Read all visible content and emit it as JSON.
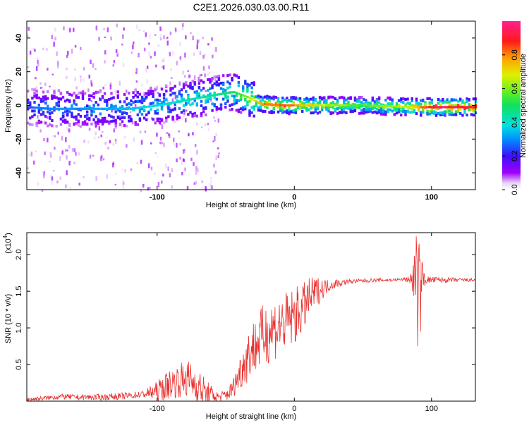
{
  "chart_data": [
    {
      "type": "heatmap",
      "title": "C2E1.2026.030.03.00.R11",
      "xlabel": "Height of straight line (km)",
      "ylabel": "Frequency (Hz)",
      "xlim": [
        -195,
        132
      ],
      "ylim": [
        -50,
        50
      ],
      "x_ticks": [
        -100,
        0,
        100
      ],
      "y_ticks": [
        -40,
        -20,
        0,
        20,
        40
      ],
      "x_tick_labels": [
        "-100",
        "0",
        "100"
      ],
      "y_tick_labels": [
        "-40",
        "-20",
        "0",
        "20",
        "40"
      ],
      "colorbar": {
        "label": "Normalized spectral amplitude",
        "range": [
          0,
          1
        ],
        "ticks": [
          0.0,
          0.2,
          0.4,
          0.6,
          0.8
        ],
        "tick_labels": [
          "0.0",
          "0.2",
          "0.4",
          "0.6",
          "0.8"
        ]
      },
      "ridge": [
        {
          "x": -195,
          "f": -1,
          "amp": 0.25
        },
        {
          "x": -180,
          "f": -2,
          "amp": 0.3
        },
        {
          "x": -160,
          "f": -2,
          "amp": 0.3
        },
        {
          "x": -140,
          "f": -2,
          "amp": 0.33
        },
        {
          "x": -120,
          "f": -2,
          "amp": 0.35
        },
        {
          "x": -100,
          "f": 0,
          "amp": 0.38
        },
        {
          "x": -80,
          "f": 3,
          "amp": 0.42
        },
        {
          "x": -60,
          "f": 6,
          "amp": 0.45
        },
        {
          "x": -45,
          "f": 8,
          "amp": 0.5
        },
        {
          "x": -35,
          "f": 5,
          "amp": 0.6
        },
        {
          "x": -25,
          "f": 1,
          "amp": 0.78
        },
        {
          "x": -10,
          "f": 0,
          "amp": 0.82
        },
        {
          "x": 0,
          "f": 0,
          "amp": 0.78
        },
        {
          "x": 20,
          "f": 0,
          "amp": 0.65
        },
        {
          "x": 50,
          "f": 0,
          "amp": 0.55
        },
        {
          "x": 85,
          "f": -1,
          "amp": 0.7
        },
        {
          "x": 100,
          "f": -1,
          "amp": 0.95
        },
        {
          "x": 132,
          "f": -1,
          "amp": 0.9
        }
      ]
    },
    {
      "type": "line",
      "xlabel": "Height of straight line (km)",
      "ylabel": "SNR (10 * v/v)",
      "y_multiplier": "(x10",
      "y_multiplier_exp": "4",
      "y_multiplier_close": ")",
      "xlim": [
        -195,
        132
      ],
      "ylim": [
        0.0,
        2.3
      ],
      "x_ticks": [
        -100,
        0,
        100
      ],
      "y_ticks": [
        0.5,
        1.0,
        1.5,
        2.0
      ],
      "x_tick_labels": [
        "-100",
        "0",
        "100"
      ],
      "y_tick_labels": [
        "0.5",
        "1.0",
        "1.5",
        "2.0"
      ],
      "color": "#e8312f",
      "envelope": {
        "x": [
          -195,
          -180,
          -170,
          -160,
          -140,
          -120,
          -110,
          -100,
          -95,
          -90,
          -85,
          -80,
          -75,
          -70,
          -65,
          -60,
          -55,
          -50,
          -45,
          -40,
          -35,
          -30,
          -25,
          -20,
          -15,
          -10,
          -5,
          0,
          5,
          10,
          15,
          20,
          25,
          30,
          40,
          50,
          60,
          70,
          80,
          85,
          88,
          90,
          92,
          95,
          100,
          110,
          120,
          132
        ],
        "y": [
          0.02,
          0.04,
          0.06,
          0.05,
          0.05,
          0.07,
          0.09,
          0.12,
          0.17,
          0.22,
          0.25,
          0.28,
          0.25,
          0.18,
          0.1,
          0.06,
          0.05,
          0.07,
          0.15,
          0.35,
          0.55,
          0.7,
          0.8,
          0.9,
          0.95,
          1.0,
          1.05,
          1.12,
          1.2,
          1.35,
          1.45,
          1.52,
          1.57,
          1.6,
          1.63,
          1.64,
          1.65,
          1.65,
          1.66,
          1.66,
          1.66,
          1.66,
          1.66,
          1.65,
          1.65,
          1.65,
          1.65,
          1.65
        ]
      },
      "noise_amp": {
        "x": [
          -195,
          -110,
          -95,
          -75,
          -65,
          -55,
          -45,
          -35,
          -20,
          0,
          10,
          25,
          40,
          80,
          85,
          88,
          92,
          96,
          132
        ],
        "y": [
          0.03,
          0.05,
          0.18,
          0.28,
          0.2,
          0.06,
          0.12,
          0.35,
          0.45,
          0.4,
          0.3,
          0.08,
          0.03,
          0.02,
          0.08,
          0.45,
          0.35,
          0.05,
          0.02
        ]
      },
      "spike": {
        "x": [
          88,
          89,
          90,
          91,
          92,
          93
        ],
        "y": [
          1.7,
          2.25,
          0.75,
          2.15,
          0.95,
          1.9
        ]
      }
    }
  ]
}
